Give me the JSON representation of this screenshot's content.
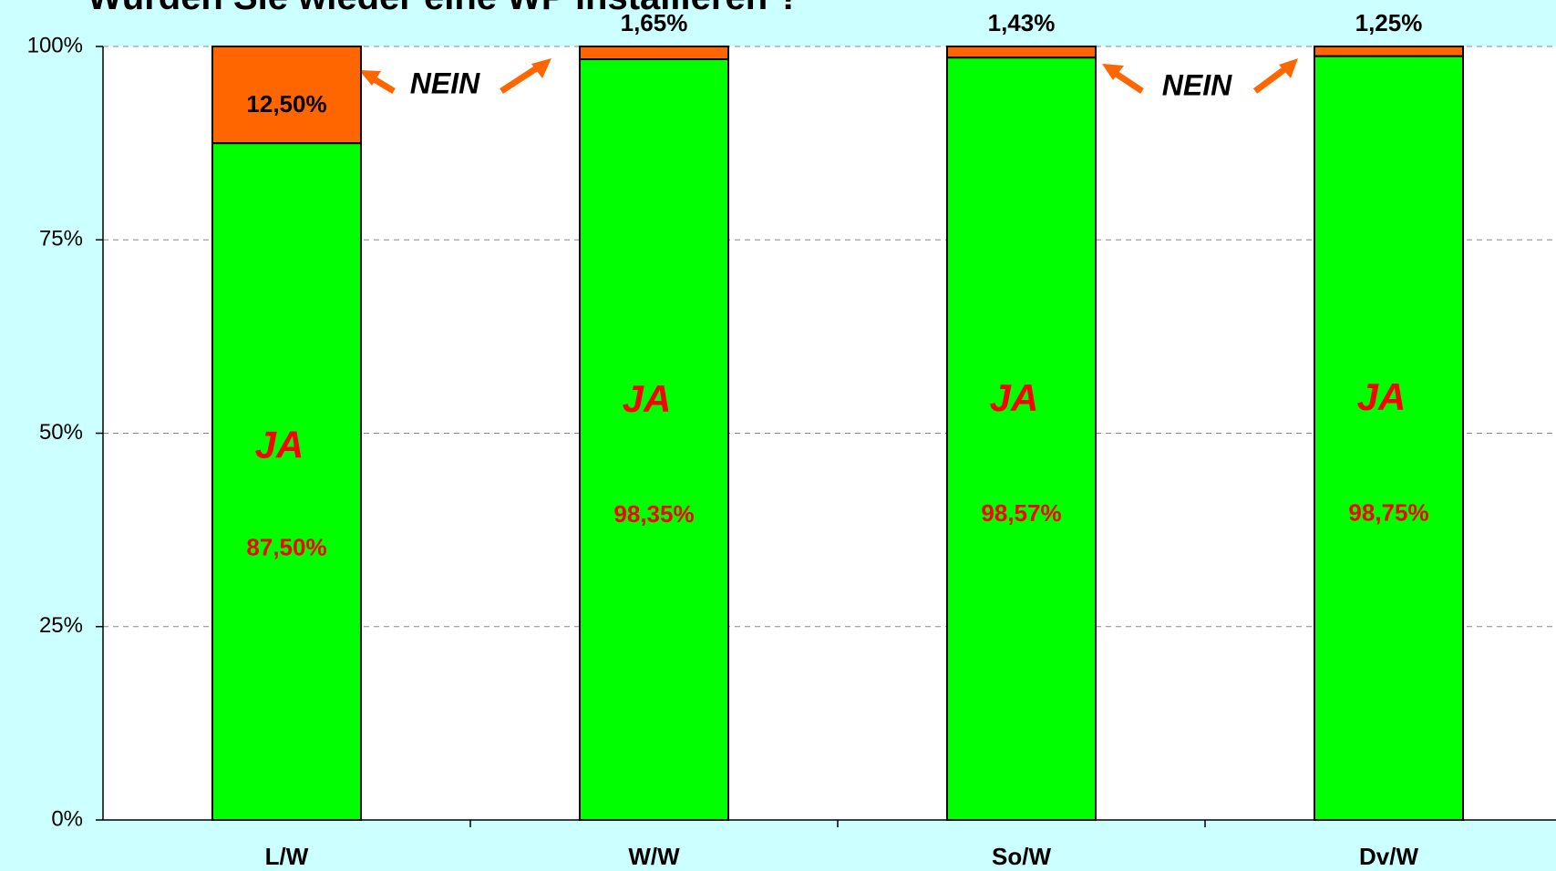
{
  "chart_data": {
    "type": "stacked_bar",
    "title": "Würden Sie wieder eine WP installieren ?",
    "categories": [
      "L/W",
      "W/W",
      "So/W",
      "Dv/W"
    ],
    "series": [
      {
        "name": "JA",
        "color": "#00ff00",
        "values": [
          87.5,
          98.35,
          98.57,
          98.75
        ],
        "value_labels": [
          "87,50%",
          "98,35%",
          "98,57%",
          "98,75%"
        ]
      },
      {
        "name": "NEIN",
        "color": "#ff6600",
        "values": [
          12.5,
          1.65,
          1.43,
          1.25
        ],
        "value_labels": [
          "12,50%",
          "1,65%",
          "1,43%",
          "1,25%"
        ]
      }
    ],
    "ylim": [
      0,
      100
    ],
    "yticks": [
      {
        "value": 0,
        "label": "0%"
      },
      {
        "value": 25,
        "label": "25%"
      },
      {
        "value": 50,
        "label": "50%"
      },
      {
        "value": 75,
        "label": "75%"
      },
      {
        "value": 100,
        "label": "100%"
      }
    ],
    "grid": true
  }
}
